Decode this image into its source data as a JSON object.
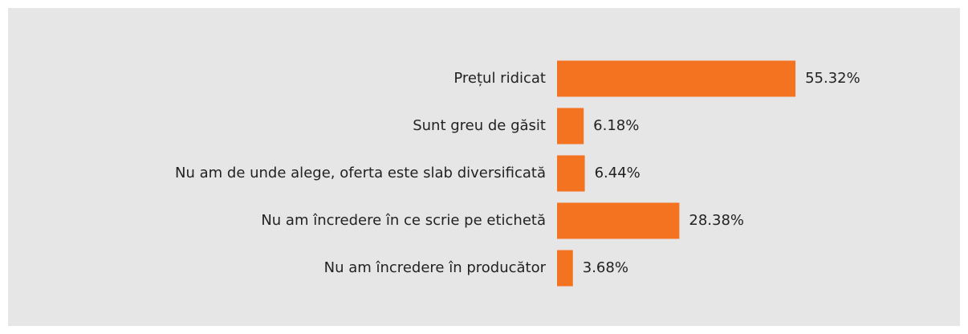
{
  "chart_data": {
    "type": "bar",
    "orientation": "horizontal",
    "categories": [
      "Prețul ridicat",
      "Sunt greu de găsit",
      "Nu am de unde alege, oferta este slab diversificată",
      "Nu am încredere în ce scrie pe etichetă",
      "Nu am încredere în producător"
    ],
    "values": [
      55.32,
      6.18,
      6.44,
      28.38,
      3.68
    ],
    "value_labels": [
      "55.32%",
      "6.18%",
      "6.44%",
      "28.38%",
      "3.68%"
    ],
    "color": "#f47321"
  }
}
